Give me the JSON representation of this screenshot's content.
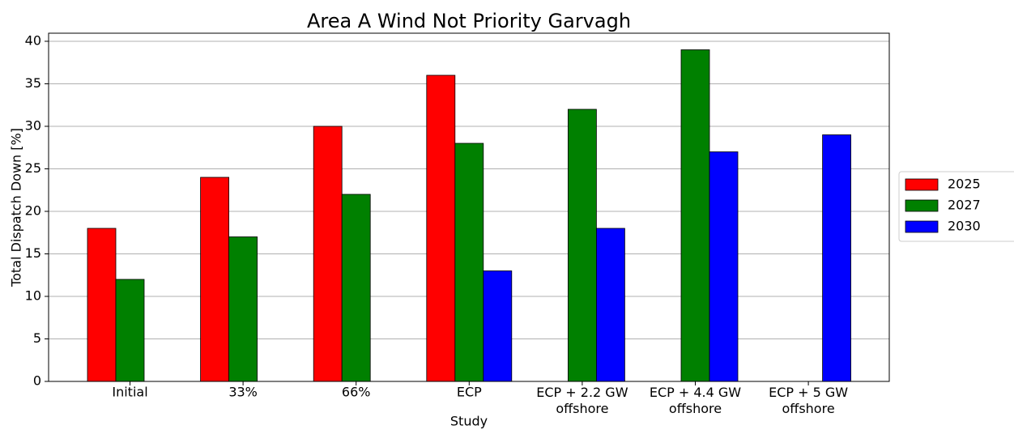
{
  "chart_data": {
    "type": "bar",
    "title": "Area A Wind Not Priority Garvagh",
    "x_label": "Study",
    "y_label": "Total Dispatch Down [%]",
    "categories": [
      "Initial",
      "33%",
      "66%",
      "ECP",
      "ECP + 2.2 GW\noffshore",
      "ECP + 4.4 GW\noffshore",
      "ECP + 5 GW\noffshore"
    ],
    "series": [
      {
        "name": "2025",
        "color": "#ff0000",
        "values": [
          18,
          24,
          30,
          36,
          null,
          null,
          null
        ]
      },
      {
        "name": "2027",
        "color": "#008000",
        "values": [
          12,
          17,
          22,
          28,
          32,
          39,
          null
        ]
      },
      {
        "name": "2030",
        "color": "#0000ff",
        "values": [
          null,
          null,
          null,
          13,
          18,
          27,
          29
        ]
      }
    ],
    "ylim": [
      0,
      40.95
    ],
    "yticks": [
      0,
      5,
      10,
      15,
      20,
      25,
      30,
      35,
      40
    ],
    "grid": true,
    "legend": "right"
  }
}
